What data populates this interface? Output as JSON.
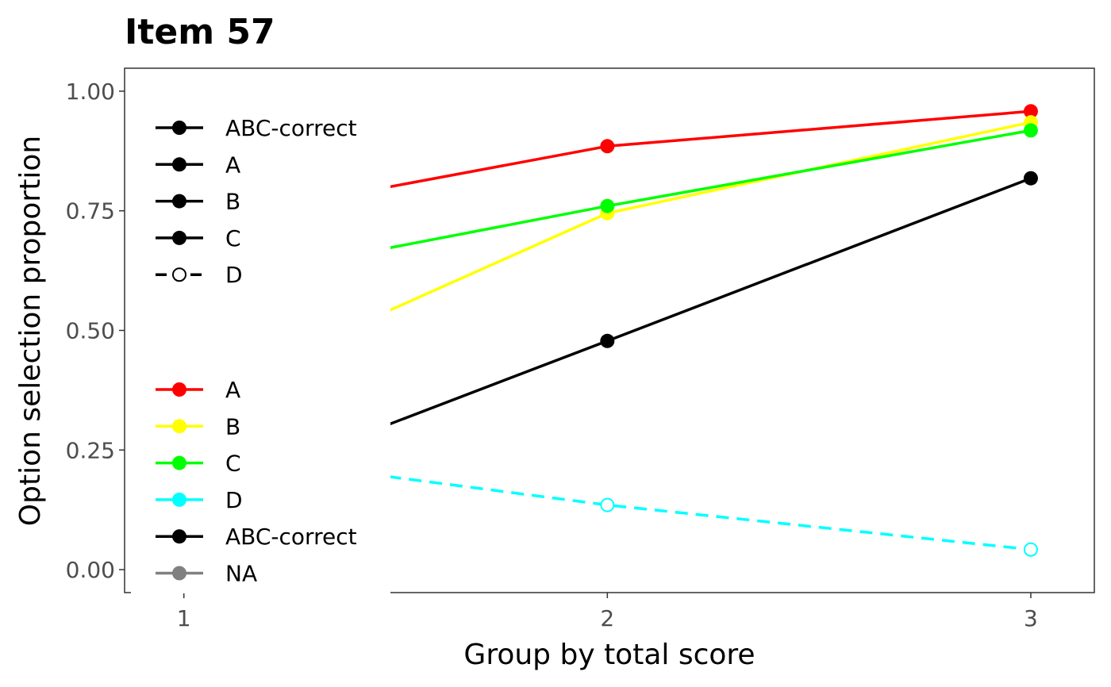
{
  "chart_data": {
    "type": "line",
    "title": "Item 57",
    "xlabel": "Group by total score",
    "ylabel": "Option selection proportion",
    "x": [
      1,
      2,
      3
    ],
    "x_tick_labels": [
      "1",
      "2",
      "3"
    ],
    "y_tick_labels": [
      "0.00",
      "0.25",
      "0.50",
      "0.75",
      "1.00"
    ],
    "y_ticks": [
      0,
      0.25,
      0.5,
      0.75,
      1.0
    ],
    "xlim": [
      0.86,
      3.15
    ],
    "ylim": [
      -0.048,
      1.048
    ],
    "grid": false,
    "legend_position": "left",
    "series": [
      {
        "name": "A",
        "color": "#ff0000",
        "linetype": "solid",
        "marker": "filled",
        "values": [
          0.72,
          0.885,
          0.958
        ]
      },
      {
        "name": "B",
        "color": "#ffff00",
        "linetype": "solid",
        "marker": "filled",
        "values": [
          0.35,
          0.745,
          0.935
        ]
      },
      {
        "name": "C",
        "color": "#00ff00",
        "linetype": "solid",
        "marker": "filled",
        "values": [
          0.59,
          0.76,
          0.918
        ]
      },
      {
        "name": "D",
        "color": "#00ffff",
        "linetype": "dashed",
        "marker": "open",
        "values": [
          0.25,
          0.135,
          0.042
        ]
      },
      {
        "name": "ABC-correct",
        "color": "#000000",
        "linetype": "solid",
        "marker": "filled",
        "values": [
          0.14,
          0.478,
          0.818
        ]
      }
    ],
    "legend_linetype": {
      "items": [
        {
          "label": "ABC-correct",
          "dashed": false,
          "open": false
        },
        {
          "label": "A",
          "dashed": false,
          "open": false
        },
        {
          "label": "B",
          "dashed": false,
          "open": false
        },
        {
          "label": "C",
          "dashed": false,
          "open": false
        },
        {
          "label": "D",
          "dashed": true,
          "open": true
        }
      ]
    },
    "legend_color": {
      "items": [
        {
          "label": "A",
          "color": "#ff0000"
        },
        {
          "label": "B",
          "color": "#ffff00"
        },
        {
          "label": "C",
          "color": "#00ff00"
        },
        {
          "label": "D",
          "color": "#00ffff"
        },
        {
          "label": "ABC-correct",
          "color": "#000000"
        },
        {
          "label": "NA",
          "color": "#808080"
        }
      ]
    }
  }
}
